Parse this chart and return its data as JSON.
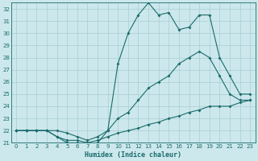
{
  "xlabel": "Humidex (Indice chaleur)",
  "bg_color": "#cce8ec",
  "grid_color": "#a8cdd4",
  "line_color": "#1a6b6b",
  "xlim": [
    -0.5,
    23.5
  ],
  "ylim": [
    21,
    32.5
  ],
  "xticks": [
    0,
    1,
    2,
    3,
    4,
    5,
    6,
    7,
    8,
    9,
    10,
    11,
    12,
    13,
    14,
    15,
    16,
    17,
    18,
    19,
    20,
    21,
    22,
    23
  ],
  "yticks": [
    21,
    22,
    23,
    24,
    25,
    26,
    27,
    28,
    29,
    30,
    31,
    32
  ],
  "line1_x": [
    0,
    1,
    2,
    3,
    4,
    5,
    6,
    7,
    8,
    9,
    10,
    11,
    12,
    13,
    14,
    15,
    16,
    17,
    18,
    19,
    20,
    21,
    22,
    23
  ],
  "line1_y": [
    22,
    22,
    22,
    22,
    21.5,
    21.2,
    21.2,
    21.0,
    21.2,
    21.5,
    21.8,
    22,
    22.2,
    22.5,
    22.7,
    23,
    23.2,
    23.5,
    23.7,
    24,
    24,
    24,
    24.3,
    24.5
  ],
  "line2_x": [
    0,
    1,
    2,
    3,
    4,
    5,
    6,
    7,
    8,
    9,
    10,
    11,
    12,
    13,
    14,
    15,
    16,
    17,
    18,
    19,
    20,
    21,
    22,
    23
  ],
  "line2_y": [
    22,
    22,
    22,
    22,
    22,
    21.8,
    21.5,
    21.2,
    21.5,
    22,
    23,
    23.5,
    24.5,
    25.5,
    26,
    26.5,
    27.5,
    28,
    28.5,
    28,
    26.5,
    25,
    24.5,
    24.5
  ],
  "line3_x": [
    0,
    1,
    2,
    3,
    4,
    5,
    6,
    7,
    8,
    9,
    10,
    11,
    12,
    13,
    14,
    15,
    16,
    17,
    18,
    19,
    20,
    21,
    22,
    23
  ],
  "line3_y": [
    22,
    22,
    22,
    22,
    21.5,
    21.0,
    21.0,
    20.8,
    21.0,
    22,
    27.5,
    30.0,
    31.5,
    32.5,
    31.5,
    31.7,
    30.3,
    30.5,
    31.5,
    31.5,
    28.0,
    26.5,
    25.0,
    25.0
  ]
}
